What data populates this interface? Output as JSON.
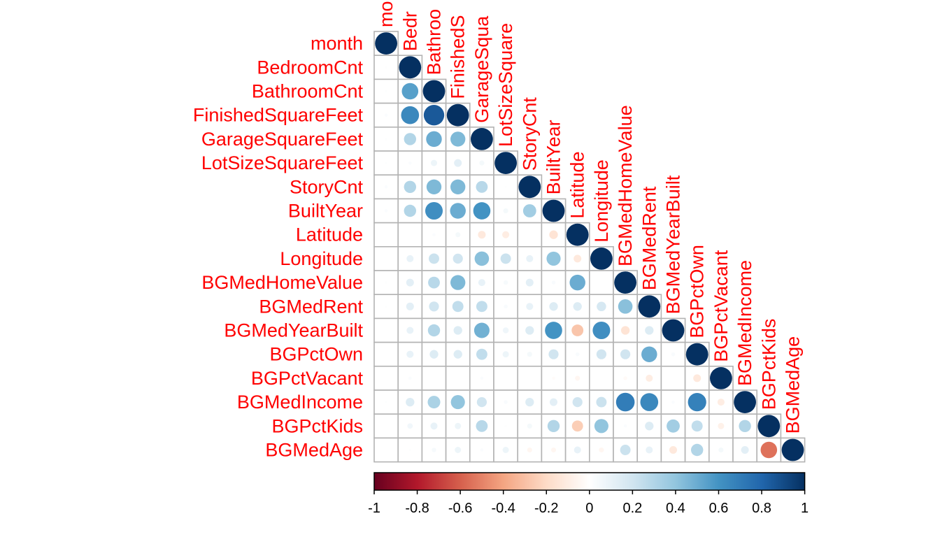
{
  "chart_data": {
    "type": "heatmap",
    "style": "lower-triangle correlation matrix, circle glyphs",
    "variables": [
      "month",
      "BedroomCnt",
      "BathroomCnt",
      "FinishedSquareFeet",
      "GarageSquareFeet",
      "LotSizeSquareFeet",
      "StoryCnt",
      "BuiltYear",
      "Latitude",
      "Longitude",
      "BGMedHomeValue",
      "BGMedRent",
      "BGMedYearBuilt",
      "BGPctOwn",
      "BGPctVacant",
      "BGMedIncome",
      "BGPctKids",
      "BGMedAge"
    ],
    "column_label_texts": [
      "mo",
      "Bedr",
      "Bathroo",
      "FinishedS",
      "GarageSqua",
      "LotSizeSquare",
      "StoryCnt",
      "BuiltYear",
      "Latitude",
      "Longitude",
      "BGMedHomeValue",
      "BGMedRent",
      "BGMedYearBuilt",
      "BGPctOwn",
      "BGPctVacant",
      "BGMedIncome",
      "BGPctKids",
      "BGMedAge"
    ],
    "matrix": [
      [
        1
      ],
      [
        0.01,
        1
      ],
      [
        0.01,
        0.55,
        1
      ],
      [
        0.02,
        0.65,
        0.85,
        1
      ],
      [
        0.01,
        0.3,
        0.5,
        0.45,
        1
      ],
      [
        0.01,
        0.02,
        0.08,
        0.12,
        0.05,
        1
      ],
      [
        0.02,
        0.3,
        0.45,
        0.45,
        0.28,
        0.01,
        1
      ],
      [
        0.02,
        0.3,
        0.62,
        0.5,
        0.6,
        0.05,
        0.35,
        1
      ],
      [
        0.0,
        0.0,
        0.02,
        0.05,
        -0.12,
        -0.1,
        0.0,
        -0.15,
        1
      ],
      [
        0.0,
        0.1,
        0.22,
        0.2,
        0.42,
        0.22,
        0.1,
        0.4,
        -0.12,
        1
      ],
      [
        0.01,
        0.12,
        0.28,
        0.45,
        0.1,
        0.04,
        0.12,
        0.03,
        0.5,
        0.0,
        1
      ],
      [
        0.01,
        0.12,
        0.2,
        0.25,
        0.25,
        0.03,
        0.1,
        0.15,
        0.15,
        0.18,
        0.42,
        1
      ],
      [
        0.0,
        0.1,
        0.3,
        0.15,
        0.48,
        0.07,
        0.15,
        0.6,
        -0.28,
        0.62,
        -0.15,
        0.15,
        1
      ],
      [
        0.0,
        0.1,
        0.15,
        0.15,
        0.25,
        0.08,
        0.05,
        0.2,
        0.03,
        0.2,
        0.2,
        0.5,
        0.03,
        1
      ],
      [
        0.0,
        0.02,
        0.0,
        0.0,
        0.02,
        0.0,
        0.0,
        -0.02,
        -0.05,
        0.0,
        -0.03,
        -0.1,
        0.0,
        -0.12,
        1
      ],
      [
        0.01,
        0.15,
        0.32,
        0.4,
        0.2,
        0.03,
        0.15,
        0.12,
        0.2,
        0.22,
        0.7,
        0.65,
        0.02,
        0.68,
        -0.1,
        1
      ],
      [
        0.0,
        0.06,
        0.1,
        0.08,
        0.28,
        0.01,
        0.05,
        0.3,
        -0.25,
        0.4,
        0.02,
        0.15,
        0.35,
        0.25,
        -0.08,
        0.3,
        1
      ],
      [
        0.0,
        0.01,
        0.04,
        0.08,
        0.02,
        0.08,
        -0.05,
        -0.05,
        0.1,
        -0.05,
        0.22,
        0.1,
        -0.12,
        0.3,
        0.05,
        0.12,
        -0.55,
        1
      ]
    ],
    "colorbar": {
      "range": [
        -1,
        1
      ],
      "ticks": [
        "-1",
        "-0.8",
        "-0.6",
        "-0.4",
        "-0.2",
        "0",
        "0.2",
        "0.4",
        "0.6",
        "0.8",
        "1"
      ],
      "colors": [
        "#67001F",
        "#B2182B",
        "#D6604D",
        "#F4A582",
        "#FDDBC7",
        "#FFFFFF",
        "#D1E5F0",
        "#92C5DE",
        "#4393C3",
        "#2166AC",
        "#053061"
      ]
    }
  }
}
